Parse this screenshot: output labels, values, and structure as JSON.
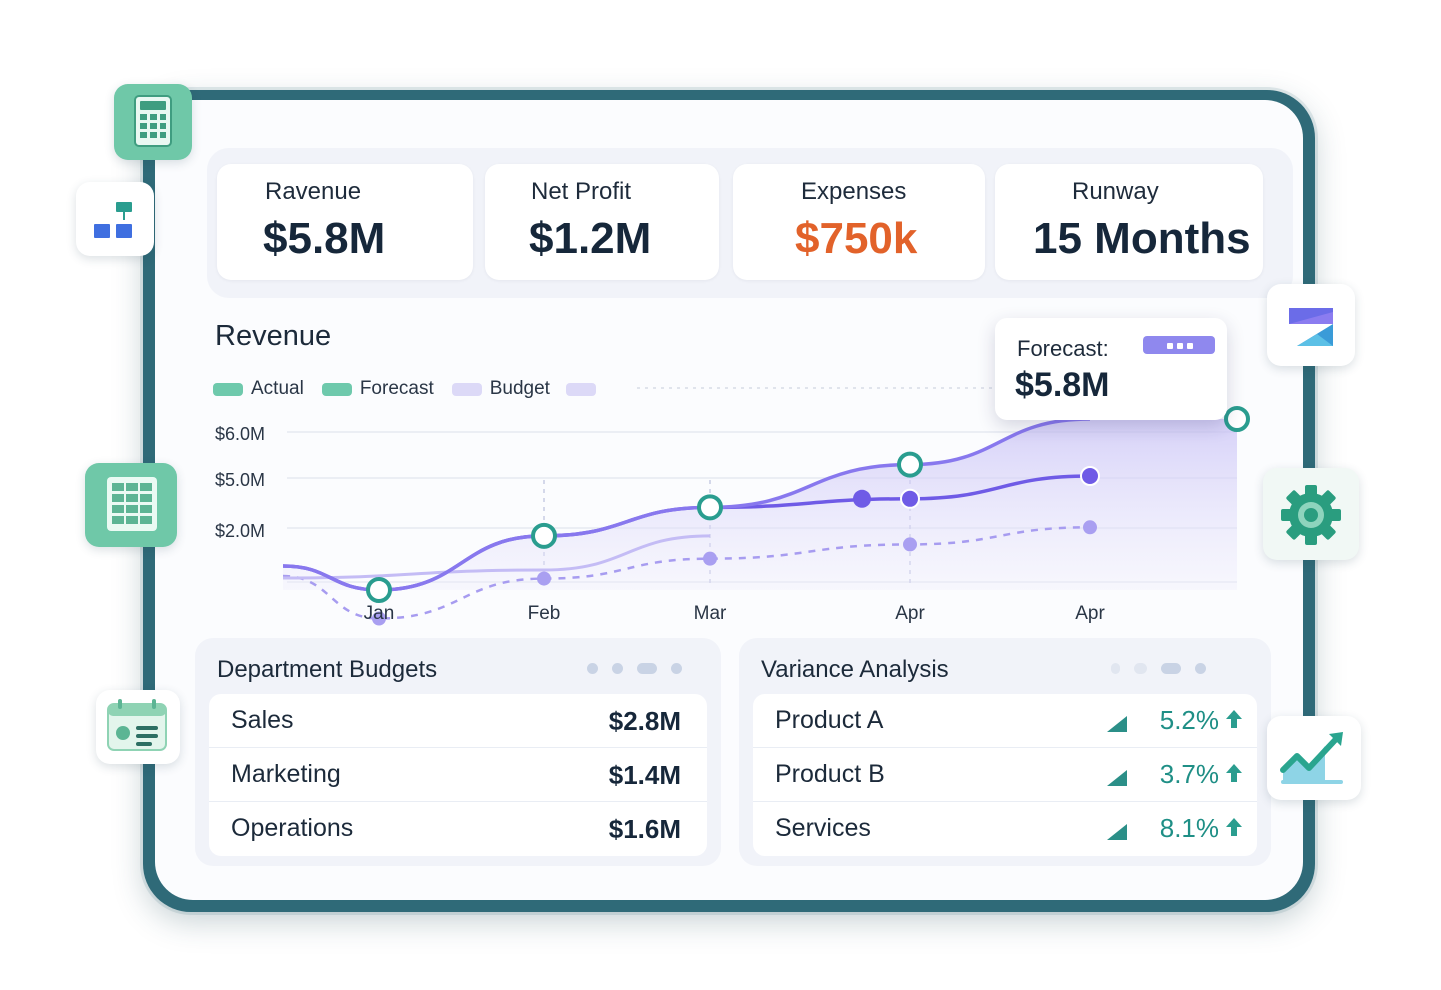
{
  "kpis": [
    {
      "label": "Ravenue",
      "value": "$5.8M",
      "color": "#16273a"
    },
    {
      "label": "Net Profit",
      "value": "$1.2M",
      "color": "#16273a"
    },
    {
      "label": "Expenses",
      "value": "$750k",
      "color": "#e2622a"
    },
    {
      "label": "Runway",
      "value": "15 Months",
      "color": "#16273a"
    }
  ],
  "revenue_chart": {
    "title": "Revenue",
    "legend": [
      "Actual",
      "Forecast",
      "Budget"
    ],
    "y_ticks": [
      "$6.0M",
      "$5.0M",
      "$2.0M"
    ],
    "x_ticks": [
      "Jan",
      "Feb",
      "Mar",
      "Apr",
      "Apr"
    ],
    "tooltip": {
      "label": "Forecast:",
      "value": "$5.8M"
    }
  },
  "chart_data": {
    "type": "line",
    "title": "Revenue",
    "categories": [
      "Jan",
      "Feb",
      "Mar",
      "Apr",
      "Apr"
    ],
    "y_tick_labels": [
      "$6.0M",
      "$5.0M",
      "$2.0M"
    ],
    "series": [
      {
        "name": "Actual",
        "values": [
          2.0,
          3.9,
          4.9,
          5.2,
          6.0
        ]
      },
      {
        "name": "Forecast",
        "values": [
          2.0,
          3.9,
          4.9,
          6.4,
          8.0
        ]
      },
      {
        "name": "Budget",
        "values": [
          1.0,
          2.4,
          3.1,
          3.6,
          4.2
        ]
      }
    ],
    "grid": true,
    "legend_position": "top-left"
  },
  "department_budgets": {
    "title": "Department Budgets",
    "rows": [
      {
        "name": "Sales",
        "amount": "$2.8M"
      },
      {
        "name": "Marketing",
        "amount": "$1.4M"
      },
      {
        "name": "Operations",
        "amount": "$1.6M"
      }
    ]
  },
  "variance_analysis": {
    "title": "Variance Analysis",
    "rows": [
      {
        "name": "Product A",
        "pct": "5.2%"
      },
      {
        "name": "Product B",
        "pct": "3.7%"
      },
      {
        "name": "Services",
        "pct": "8.1%"
      }
    ]
  },
  "colors": {
    "actual": "#6f5be6",
    "forecast": "#8878ee",
    "budget": "#a79cf0",
    "teal": "#2a9d8f",
    "accent_orange": "#e2622a"
  },
  "floating_icons": [
    "calculator-icon",
    "org-chart-icon",
    "spreadsheet-icon",
    "calendar-card-icon",
    "stacked-bars-icon",
    "gear-icon",
    "growth-chart-icon"
  ]
}
